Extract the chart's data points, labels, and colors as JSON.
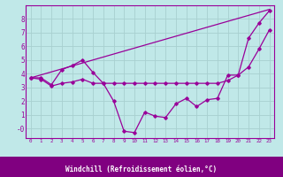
{
  "background_color": "#c0e8e8",
  "plot_bg_color": "#c0e8e8",
  "axis_band_color": "#800080",
  "grid_color": "#a8d0d0",
  "line_color": "#990099",
  "xlabel": "Windchill (Refroidissement éolien,°C)",
  "xlim": [
    -0.5,
    23.5
  ],
  "ylim": [
    -0.7,
    9.0
  ],
  "yticks": [
    0,
    1,
    2,
    3,
    4,
    5,
    6,
    7,
    8
  ],
  "ytick_labels": [
    "-0",
    "1",
    "2",
    "3",
    "4",
    "5",
    "6",
    "7",
    "8"
  ],
  "xticks": [
    0,
    1,
    2,
    3,
    4,
    5,
    6,
    7,
    8,
    9,
    10,
    11,
    12,
    13,
    14,
    15,
    16,
    17,
    18,
    19,
    20,
    21,
    22,
    23
  ],
  "line1_x": [
    0,
    1,
    2,
    3,
    4,
    5,
    6,
    7,
    8,
    9,
    10,
    11,
    12,
    13,
    14,
    15,
    16,
    17,
    18,
    19,
    20,
    21,
    22,
    23
  ],
  "line1_y": [
    3.7,
    3.7,
    3.2,
    4.3,
    4.6,
    5.0,
    4.1,
    3.3,
    2.0,
    -0.2,
    -0.3,
    1.2,
    0.9,
    0.8,
    1.8,
    2.2,
    1.6,
    2.1,
    2.2,
    3.9,
    3.9,
    6.6,
    7.7,
    8.6
  ],
  "line2_x": [
    0,
    1,
    2,
    3,
    4,
    5,
    6,
    7,
    8,
    9,
    10,
    11,
    12,
    13,
    14,
    15,
    16,
    17,
    18,
    19,
    20,
    21,
    22,
    23
  ],
  "line2_y": [
    3.7,
    3.6,
    3.1,
    3.3,
    3.4,
    3.6,
    3.3,
    3.3,
    3.3,
    3.3,
    3.3,
    3.3,
    3.3,
    3.3,
    3.3,
    3.3,
    3.3,
    3.3,
    3.3,
    3.5,
    3.9,
    4.5,
    5.8,
    7.2
  ],
  "line3_x": [
    0,
    23
  ],
  "line3_y": [
    3.7,
    8.7
  ]
}
